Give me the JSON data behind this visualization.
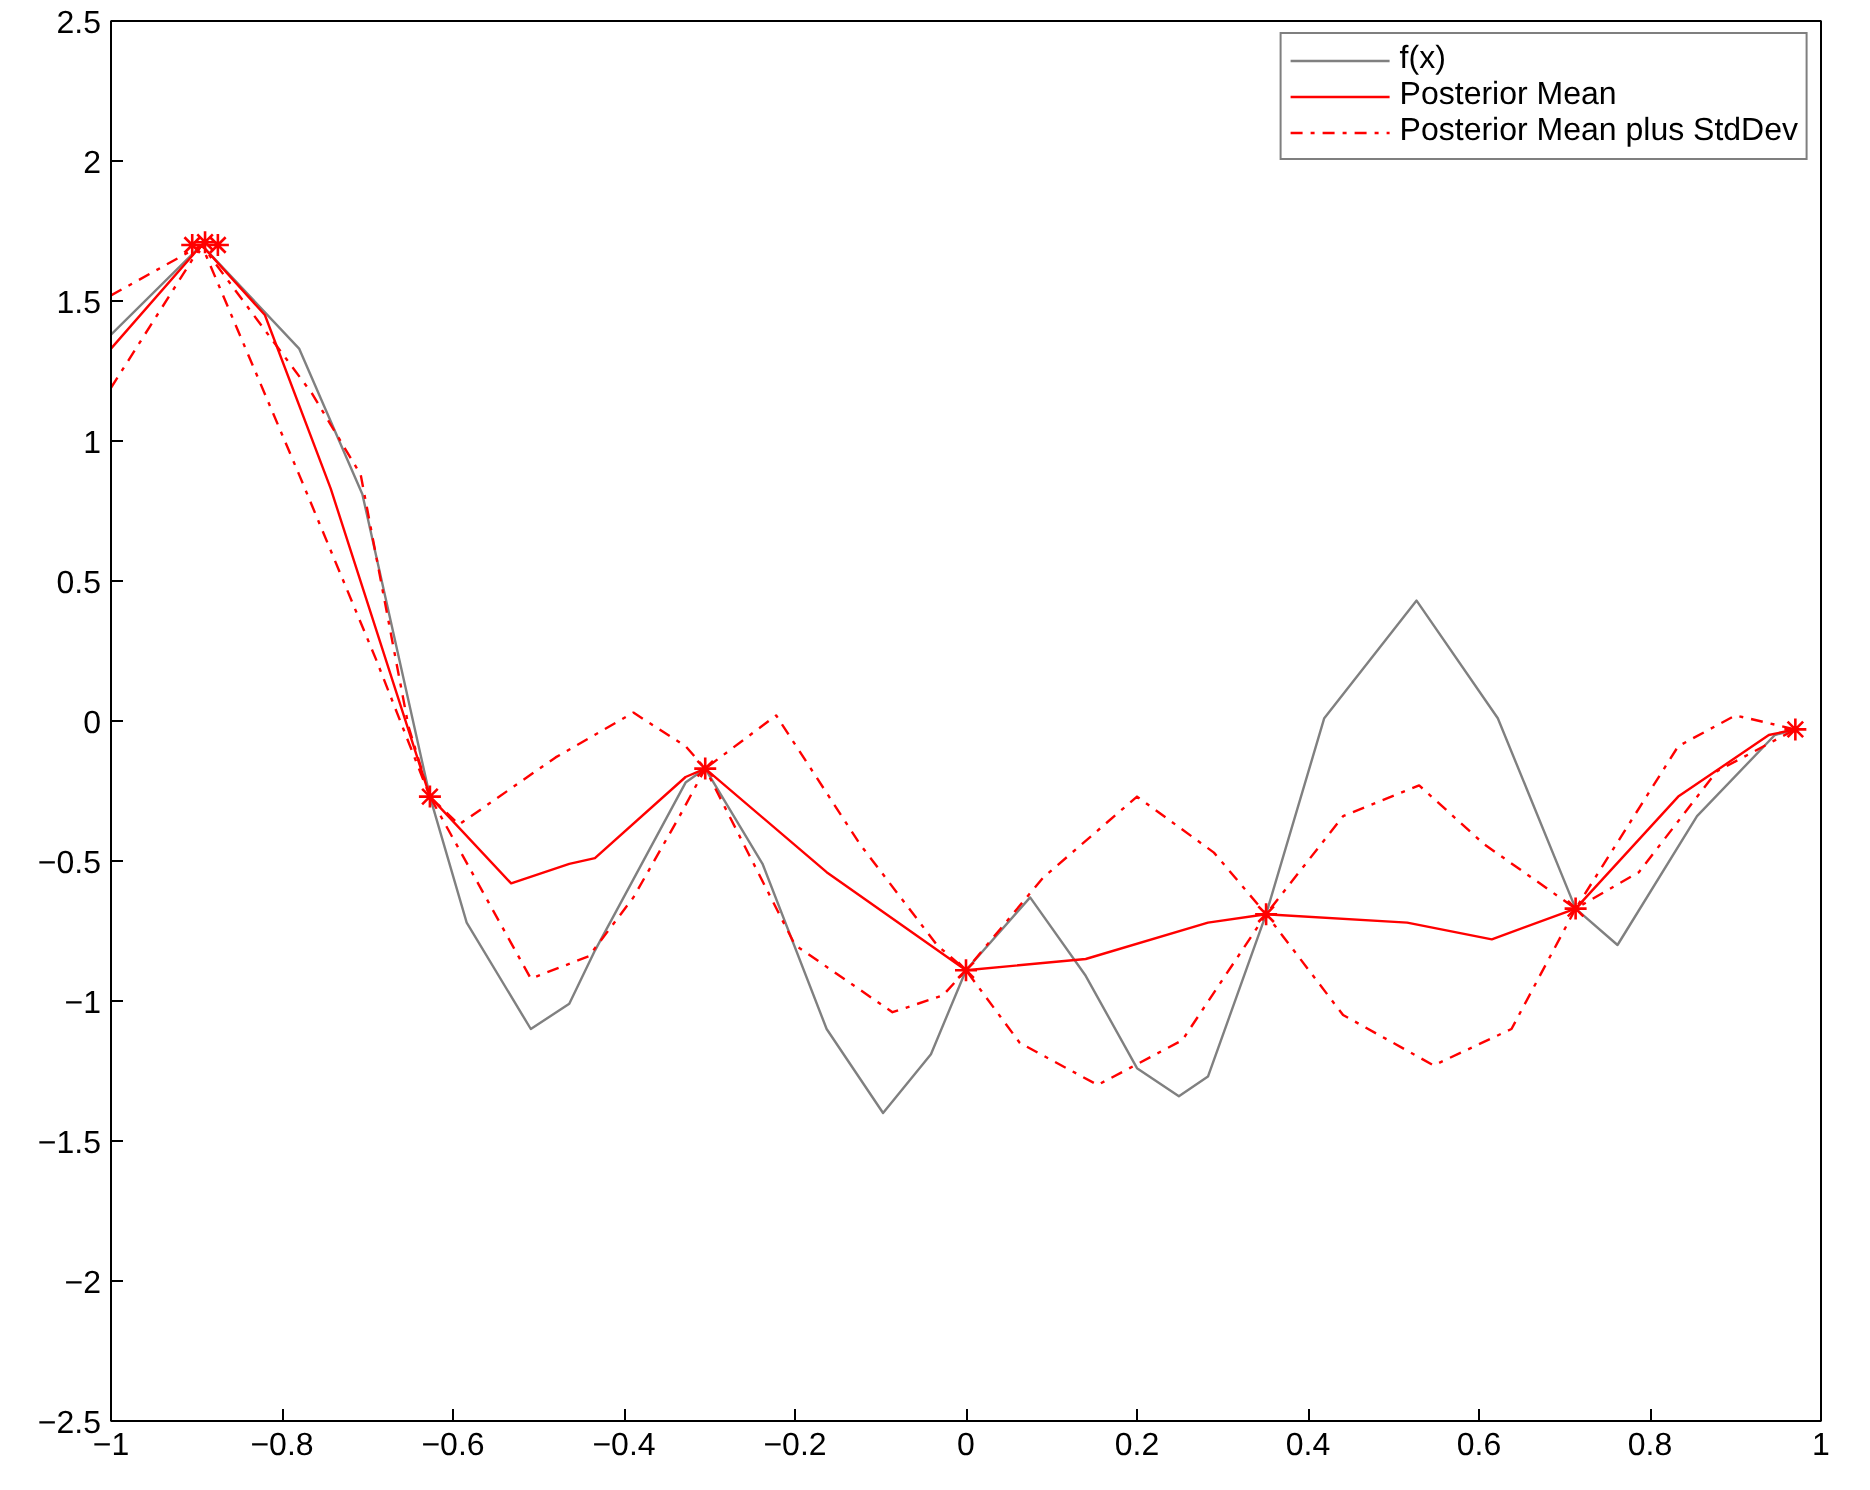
{
  "chart_data": {
    "type": "line",
    "xlim": [
      -1,
      1
    ],
    "ylim": [
      -2.5,
      2.5
    ],
    "xticks": [
      {
        "value": -1,
        "label": "−1"
      },
      {
        "value": -0.8,
        "label": "−0.8"
      },
      {
        "value": -0.6,
        "label": "−0.6"
      },
      {
        "value": -0.4,
        "label": "−0.4"
      },
      {
        "value": -0.2,
        "label": "−0.2"
      },
      0,
      0.2,
      0.4,
      0.6,
      0.8,
      1
    ],
    "yticks": [
      {
        "value": -2.5,
        "label": "−2.5"
      },
      {
        "value": -2,
        "label": "−2"
      },
      {
        "value": -1.5,
        "label": "−1.5"
      },
      {
        "value": -1,
        "label": "−1"
      },
      {
        "value": -0.5,
        "label": "−0.5"
      },
      0,
      0.5,
      1,
      1.5,
      2,
      2.5
    ],
    "grid": false,
    "legend": "top right",
    "series": [
      {
        "name": "f(x)",
        "color": "#808080",
        "line_style": "solid",
        "x": [
          -1.0,
          -0.894,
          -0.78,
          -0.706,
          -0.627,
          -0.584,
          -0.509,
          -0.464,
          -0.434,
          -0.328,
          -0.305,
          -0.238,
          -0.163,
          -0.097,
          -0.041,
          0,
          0.075,
          0.14,
          0.2,
          0.249,
          0.283,
          0.351,
          0.419,
          0.527,
          0.622,
          0.713,
          0.762,
          0.855,
          0.946,
          0.97
        ],
        "values": [
          1.38,
          1.7,
          1.33,
          0.81,
          -0.27,
          -0.72,
          -1.1,
          -1.01,
          -0.82,
          -0.22,
          -0.17,
          -0.51,
          -1.1,
          -1.4,
          -1.19,
          -0.89,
          -0.63,
          -0.91,
          -1.24,
          -1.34,
          -1.27,
          -0.69,
          0.01,
          0.43,
          0.01,
          -0.67,
          -0.8,
          -0.34,
          -0.05,
          -0.03
        ]
      },
      {
        "name": "Posterior Mean",
        "type": "line",
        "color": "#ff0000",
        "line_style": "solid",
        "x": [
          -1.0,
          -0.894,
          -0.82,
          -0.743,
          -0.627,
          -0.532,
          -0.464,
          -0.434,
          -0.328,
          -0.305,
          -0.163,
          0,
          0.14,
          0.283,
          0.351,
          0.516,
          0.615,
          0.713,
          0.833,
          0.939,
          0.97
        ],
        "values": [
          1.33,
          1.7,
          1.45,
          0.83,
          -0.27,
          -0.58,
          -0.51,
          -0.49,
          -0.2,
          -0.17,
          -0.54,
          -0.89,
          -0.85,
          -0.72,
          -0.69,
          -0.72,
          -0.78,
          -0.67,
          -0.27,
          -0.05,
          -0.03
        ]
      },
      {
        "name": "Posterior Mean plus StdDev",
        "type": "line",
        "color": "#ff0000",
        "line_style": "dashdot",
        "x": [
          -1.0,
          -0.894,
          -0.765,
          -0.708,
          -0.652,
          -0.627,
          -0.593,
          -0.48,
          -0.389,
          -0.328,
          -0.305,
          -0.222,
          -0.124,
          -0.034,
          0,
          0.09,
          0.2,
          0.29,
          0.351,
          0.441,
          0.53,
          0.606,
          0.713,
          0.833,
          0.9,
          0.97
        ],
        "values": [
          1.52,
          1.7,
          1.17,
          0.88,
          -0.02,
          -0.27,
          -0.37,
          -0.13,
          0.03,
          -0.09,
          -0.17,
          0.02,
          -0.44,
          -0.8,
          -0.89,
          -0.56,
          -0.27,
          -0.47,
          -0.69,
          -0.34,
          -0.23,
          -0.44,
          -0.67,
          -0.09,
          0.02,
          -0.03
        ]
      },
      {
        "type": "line",
        "color": "#ff0000",
        "line_style": "dashdot",
        "x": [
          -1.0,
          -0.894,
          -0.78,
          -0.69,
          -0.627,
          -0.509,
          -0.441,
          -0.389,
          -0.335,
          -0.305,
          -0.2,
          -0.086,
          -0.027,
          0,
          0.063,
          0.154,
          0.253,
          0.351,
          0.441,
          0.547,
          0.638,
          0.713,
          0.787,
          0.878,
          0.97
        ],
        "values": [
          1.19,
          1.7,
          0.88,
          0.22,
          -0.27,
          -0.92,
          -0.84,
          -0.63,
          -0.34,
          -0.17,
          -0.8,
          -1.04,
          -0.98,
          -0.89,
          -1.15,
          -1.3,
          -1.14,
          -0.69,
          -1.05,
          -1.23,
          -1.1,
          -0.67,
          -0.54,
          -0.18,
          -0.03
        ]
      },
      {
        "type": "scatter",
        "color": "#ff0000",
        "marker": "cross",
        "x": [
          -0.905,
          -0.89,
          -0.875,
          -0.627,
          -0.305,
          0,
          0.351,
          0.713,
          0.97
        ],
        "values": [
          1.7,
          1.71,
          1.7,
          -0.27,
          -0.17,
          -0.89,
          -0.69,
          -0.67,
          -0.03
        ]
      }
    ]
  }
}
